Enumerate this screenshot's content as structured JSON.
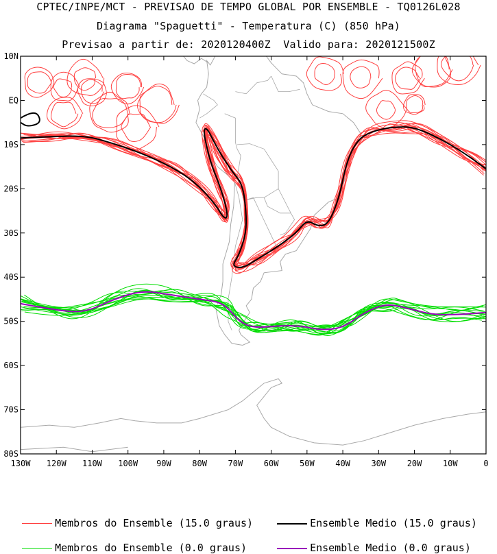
{
  "title": {
    "line1": "CPTEC/INPE/MCT - PREVISAO DE TEMPO GLOBAL POR ENSEMBLE - TQ0126L028",
    "line2": "Diagrama \"Spaguetti\" - Temperatura (C) (850 hPa)",
    "line3": "Previsao a partir de: 2020120400Z  Valido para: 2020121500Z"
  },
  "map": {
    "lat_ticks": [
      "10N",
      "EQ",
      "10S",
      "20S",
      "30S",
      "40S",
      "50S",
      "60S",
      "70S",
      "80S"
    ],
    "lon_ticks": [
      "130W",
      "120W",
      "110W",
      "100W",
      "90W",
      "80W",
      "70W",
      "60W",
      "50W",
      "40W",
      "30W",
      "20W",
      "10W",
      "0"
    ],
    "extent": {
      "lon": [
        -130,
        0
      ],
      "lat": [
        -80,
        10
      ]
    }
  },
  "legend": [
    {
      "label": "Membros do Ensemble (15.0 graus)",
      "color": "#ff4040",
      "kind": "members"
    },
    {
      "label": "Ensemble Medio (15.0 graus)",
      "color": "#000000",
      "kind": "mean"
    },
    {
      "label": "Membros do Ensemble (0.0 graus)",
      "color": "#00dd00",
      "kind": "members"
    },
    {
      "label": "Ensemble Medio (0.0 graus)",
      "color": "#9900bb",
      "kind": "mean"
    }
  ],
  "colors": {
    "coast": "#a8a8a8",
    "frame": "#000000"
  }
}
